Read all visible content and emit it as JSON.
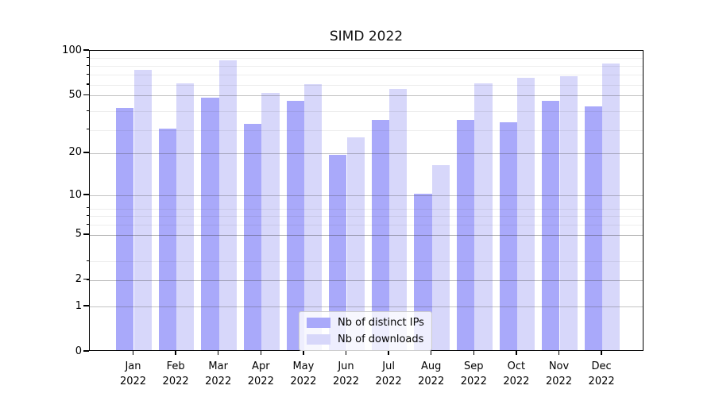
{
  "chart_data": {
    "type": "bar",
    "title": "SIMD 2022",
    "categories": [
      "Jan",
      "Feb",
      "Mar",
      "Apr",
      "May",
      "Jun",
      "Jul",
      "Aug",
      "Sep",
      "Oct",
      "Nov",
      "Dec"
    ],
    "category_year": "2022",
    "series": [
      {
        "name": "Nb of distinct IPs",
        "color": "#a9a9fa",
        "values": [
          40,
          29,
          47,
          31,
          45,
          19,
          33,
          10,
          33,
          32,
          45,
          41
        ]
      },
      {
        "name": "Nb of downloads",
        "color": "#d7d7fa",
        "values": [
          73,
          59,
          84,
          51,
          58,
          25,
          54,
          16,
          59,
          64,
          66,
          80
        ]
      }
    ],
    "yscale": "log10(value+1)",
    "ylim": [
      0,
      100
    ],
    "yticks": [
      0,
      1,
      2,
      5,
      10,
      20,
      50,
      100
    ],
    "minor_gridlines_value_plus_1": [
      3,
      4,
      6,
      7,
      8,
      9,
      30,
      40,
      60,
      70,
      80,
      90
    ],
    "grid": true,
    "legend_position": "lower center",
    "bar_group": "grouped, dark series left, light series right"
  }
}
